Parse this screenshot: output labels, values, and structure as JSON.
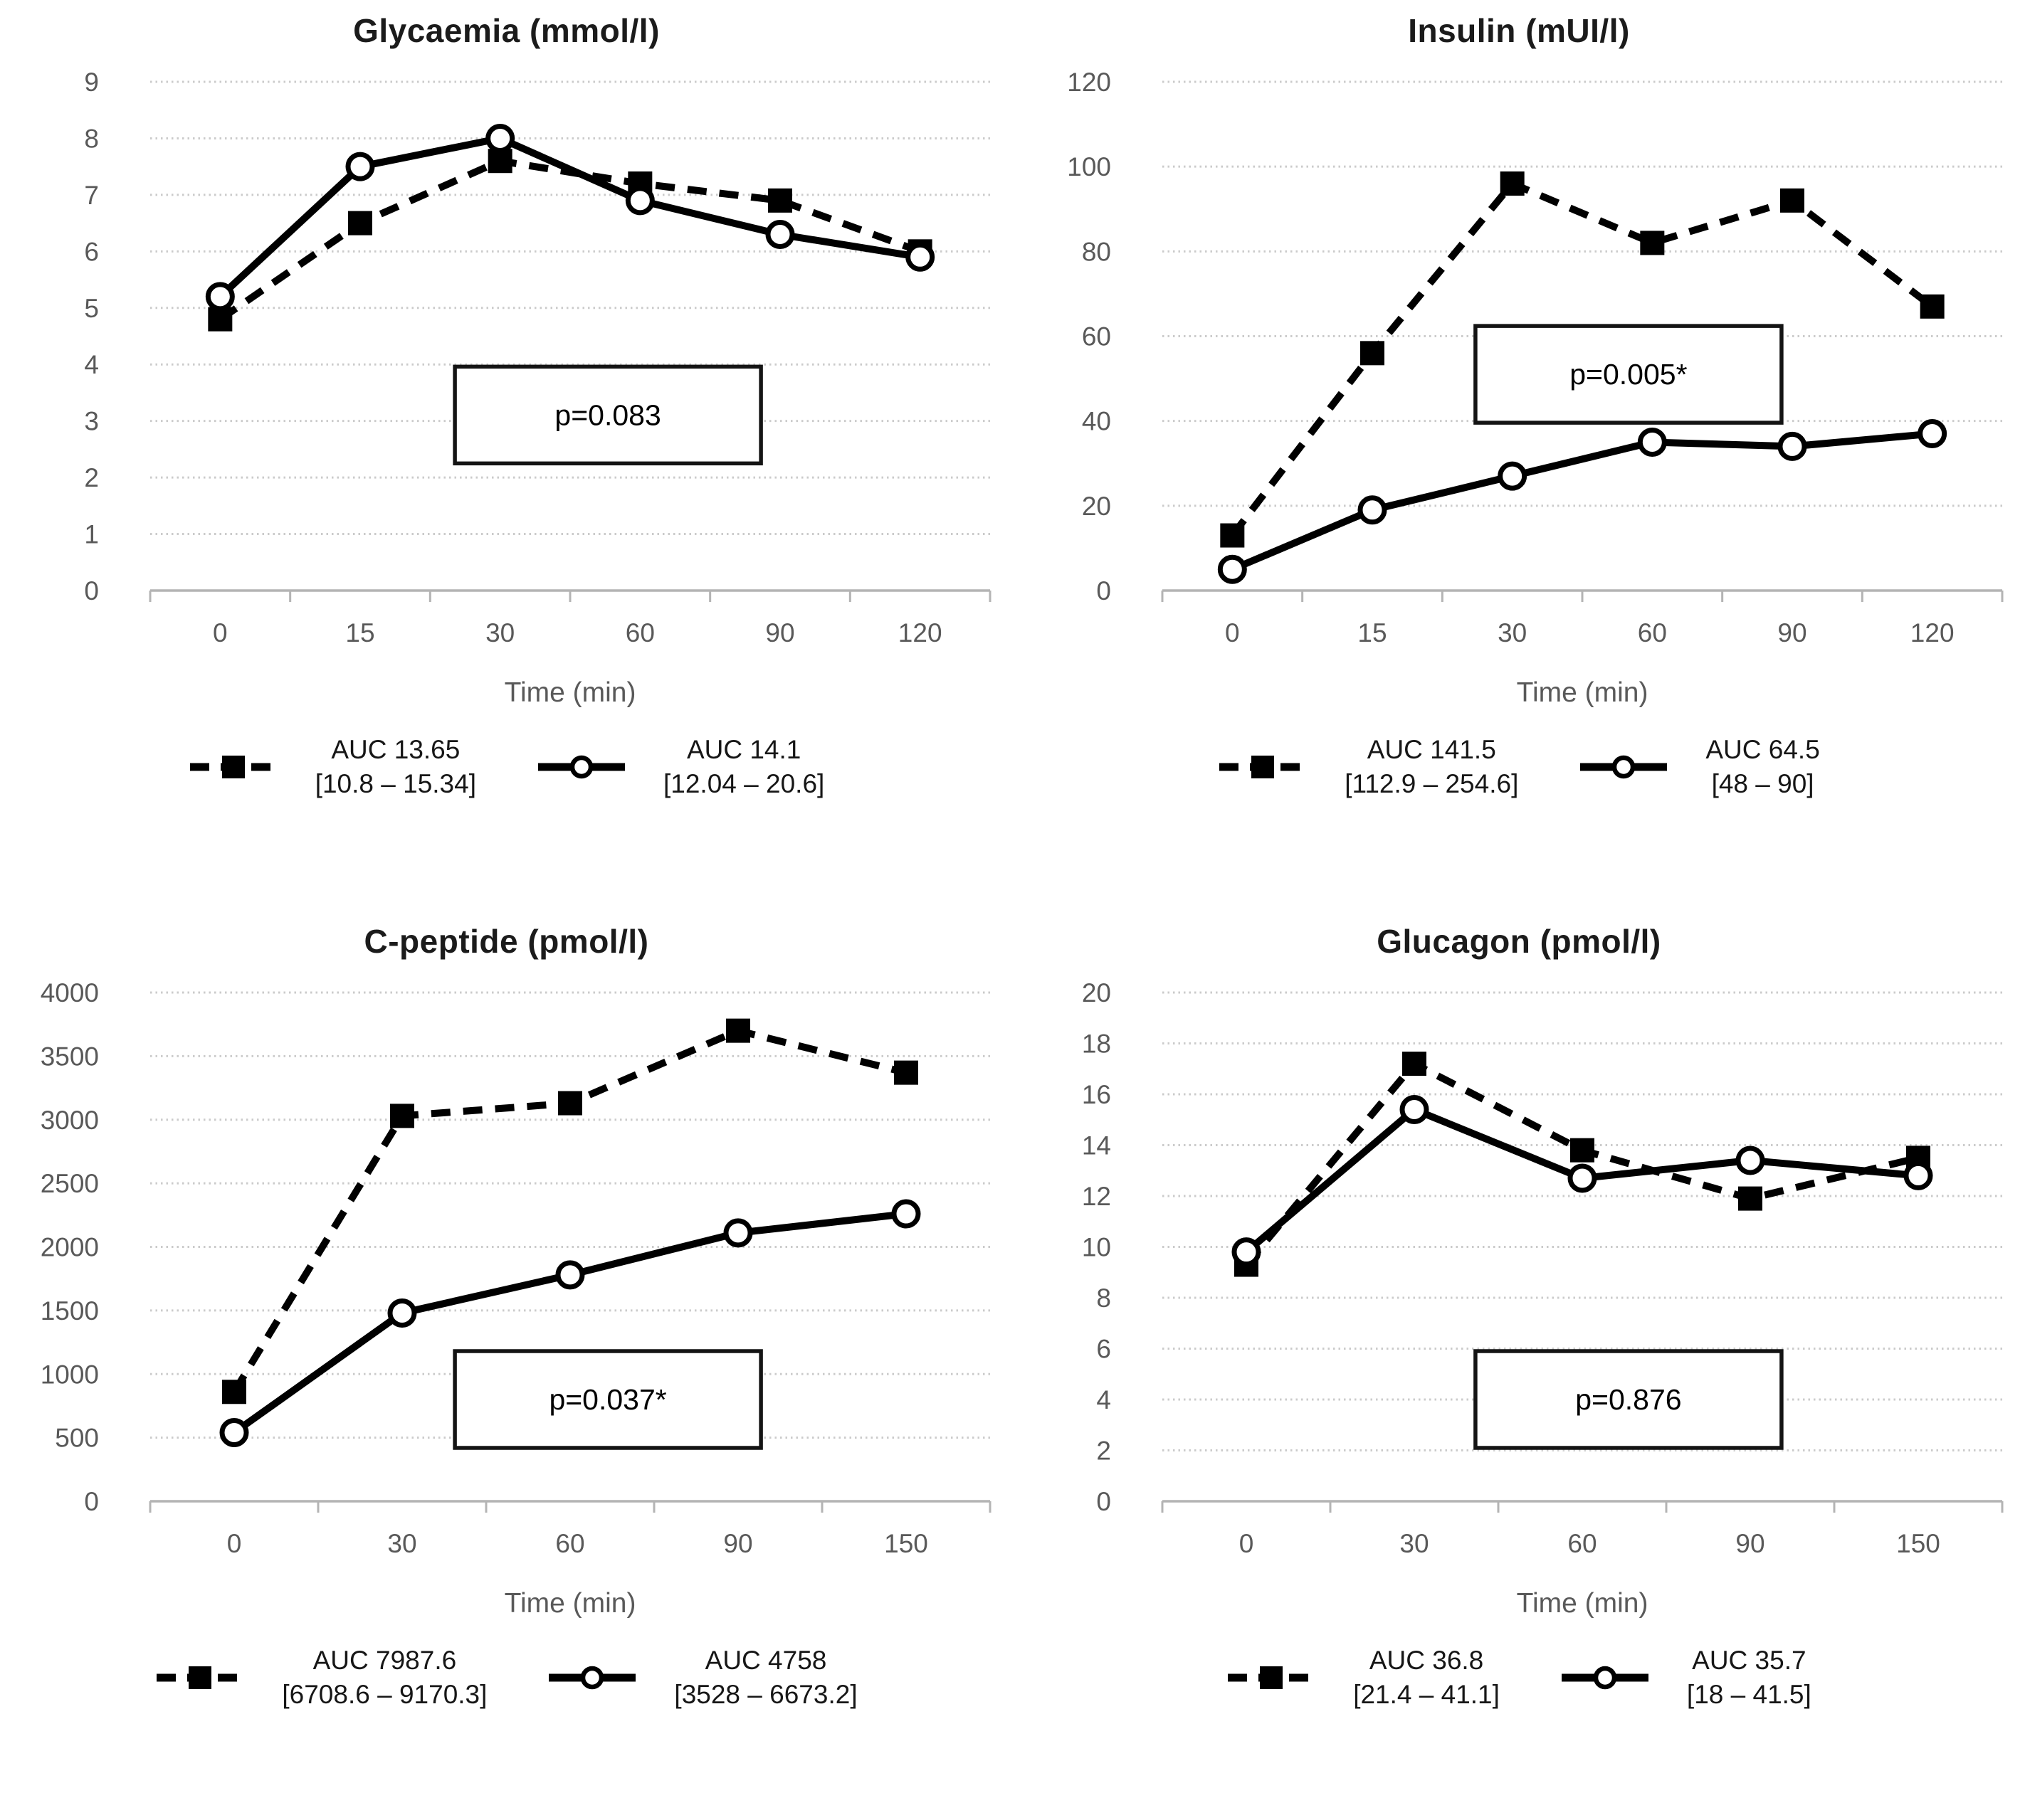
{
  "chart_data": [
    {
      "id": "glycaemia",
      "type": "line",
      "title": "Glycaemia (mmol/l)",
      "xlabel": "Time (min)",
      "x_tick_labels": [
        "0",
        "15",
        "30",
        "60",
        "90",
        "120"
      ],
      "y_tick_labels": [
        "0",
        "1",
        "2",
        "3",
        "4",
        "5",
        "6",
        "7",
        "8",
        "9"
      ],
      "ylim": [
        0,
        9
      ],
      "grid": true,
      "legend_position": "bottom",
      "p_value": {
        "label": "p=0.083",
        "cx": 0.545,
        "cy": 0.655
      },
      "series": [
        {
          "name": "dashed-squares",
          "marker": "square",
          "line": "dashed",
          "x": [
            0,
            15,
            30,
            60,
            90,
            120
          ],
          "values": [
            4.8,
            6.5,
            7.6,
            7.2,
            6.9,
            6.0
          ],
          "legend": {
            "line1": "AUC 13.65",
            "line2": "[10.8 – 15.34]"
          }
        },
        {
          "name": "solid-circles",
          "marker": "circle",
          "line": "solid",
          "x": [
            0,
            15,
            30,
            60,
            90,
            120
          ],
          "values": [
            5.2,
            7.5,
            8.0,
            6.9,
            6.3,
            5.9
          ],
          "legend": {
            "line1": "AUC 14.1",
            "line2": "[12.04 – 20.6]"
          }
        }
      ]
    },
    {
      "id": "insulin",
      "type": "line",
      "title": "Insulin (mUI/l)",
      "xlabel": "Time (min)",
      "x_tick_labels": [
        "0",
        "15",
        "30",
        "60",
        "90",
        "120"
      ],
      "y_tick_labels": [
        "0",
        "20",
        "40",
        "60",
        "80",
        "100",
        "120"
      ],
      "ylim": [
        0,
        120
      ],
      "grid": true,
      "legend_position": "bottom",
      "p_value": {
        "label": "p=0.005*",
        "cx": 0.555,
        "cy": 0.575
      },
      "series": [
        {
          "name": "dashed-squares",
          "marker": "square",
          "line": "dashed",
          "x": [
            0,
            15,
            30,
            60,
            90,
            120
          ],
          "values": [
            13,
            56,
            96,
            82,
            92,
            67
          ],
          "legend": {
            "line1": "AUC 141.5",
            "line2": "[112.9 – 254.6]"
          }
        },
        {
          "name": "solid-circles",
          "marker": "circle",
          "line": "solid",
          "x": [
            0,
            15,
            30,
            60,
            90,
            120
          ],
          "values": [
            5,
            19,
            27,
            35,
            34,
            37
          ],
          "legend": {
            "line1": "AUC 64.5",
            "line2": "[48 – 90]"
          }
        }
      ]
    },
    {
      "id": "c-peptide",
      "type": "line",
      "title": "C-peptide (pmol/l)",
      "xlabel": "Time (min)",
      "x_tick_labels": [
        "0",
        "30",
        "60",
        "90",
        "150"
      ],
      "y_tick_labels": [
        "0",
        "500",
        "1000",
        "1500",
        "2000",
        "2500",
        "3000",
        "3500",
        "4000"
      ],
      "ylim": [
        0,
        4000
      ],
      "grid": true,
      "legend_position": "bottom",
      "p_value": {
        "label": "p=0.037*",
        "cx": 0.545,
        "cy": 0.8
      },
      "series": [
        {
          "name": "dashed-squares",
          "marker": "square",
          "line": "dashed",
          "x": [
            0,
            30,
            60,
            90,
            150
          ],
          "values": [
            860,
            3030,
            3130,
            3700,
            3370
          ],
          "legend": {
            "line1": "AUC 7987.6",
            "line2": "[6708.6 – 9170.3]"
          }
        },
        {
          "name": "solid-circles",
          "marker": "circle",
          "line": "solid",
          "x": [
            0,
            30,
            60,
            90,
            150
          ],
          "values": [
            540,
            1480,
            1780,
            2110,
            2260
          ],
          "legend": {
            "line1": "AUC 4758",
            "line2": "[3528 – 6673.2]"
          }
        }
      ]
    },
    {
      "id": "glucagon",
      "type": "line",
      "title": "Glucagon (pmol/l)",
      "xlabel": "Time (min)",
      "x_tick_labels": [
        "0",
        "30",
        "60",
        "90",
        "150"
      ],
      "y_tick_labels": [
        "0",
        "2",
        "4",
        "6",
        "8",
        "10",
        "12",
        "14",
        "16",
        "18",
        "20"
      ],
      "ylim": [
        0,
        20
      ],
      "grid": true,
      "legend_position": "bottom",
      "p_value": {
        "label": "p=0.876",
        "cx": 0.555,
        "cy": 0.8
      },
      "series": [
        {
          "name": "dashed-squares",
          "marker": "square",
          "line": "dashed",
          "x": [
            0,
            30,
            60,
            90,
            150
          ],
          "values": [
            9.3,
            17.2,
            13.8,
            11.9,
            13.5
          ],
          "legend": {
            "line1": "AUC 36.8",
            "line2": "[21.4 – 41.1]"
          }
        },
        {
          "name": "solid-circles",
          "marker": "circle",
          "line": "solid",
          "x": [
            0,
            30,
            60,
            90,
            150
          ],
          "values": [
            9.8,
            15.4,
            12.7,
            13.4,
            12.8
          ],
          "legend": {
            "line1": "AUC 35.7",
            "line2": "[18 – 41.5]"
          }
        }
      ]
    }
  ]
}
